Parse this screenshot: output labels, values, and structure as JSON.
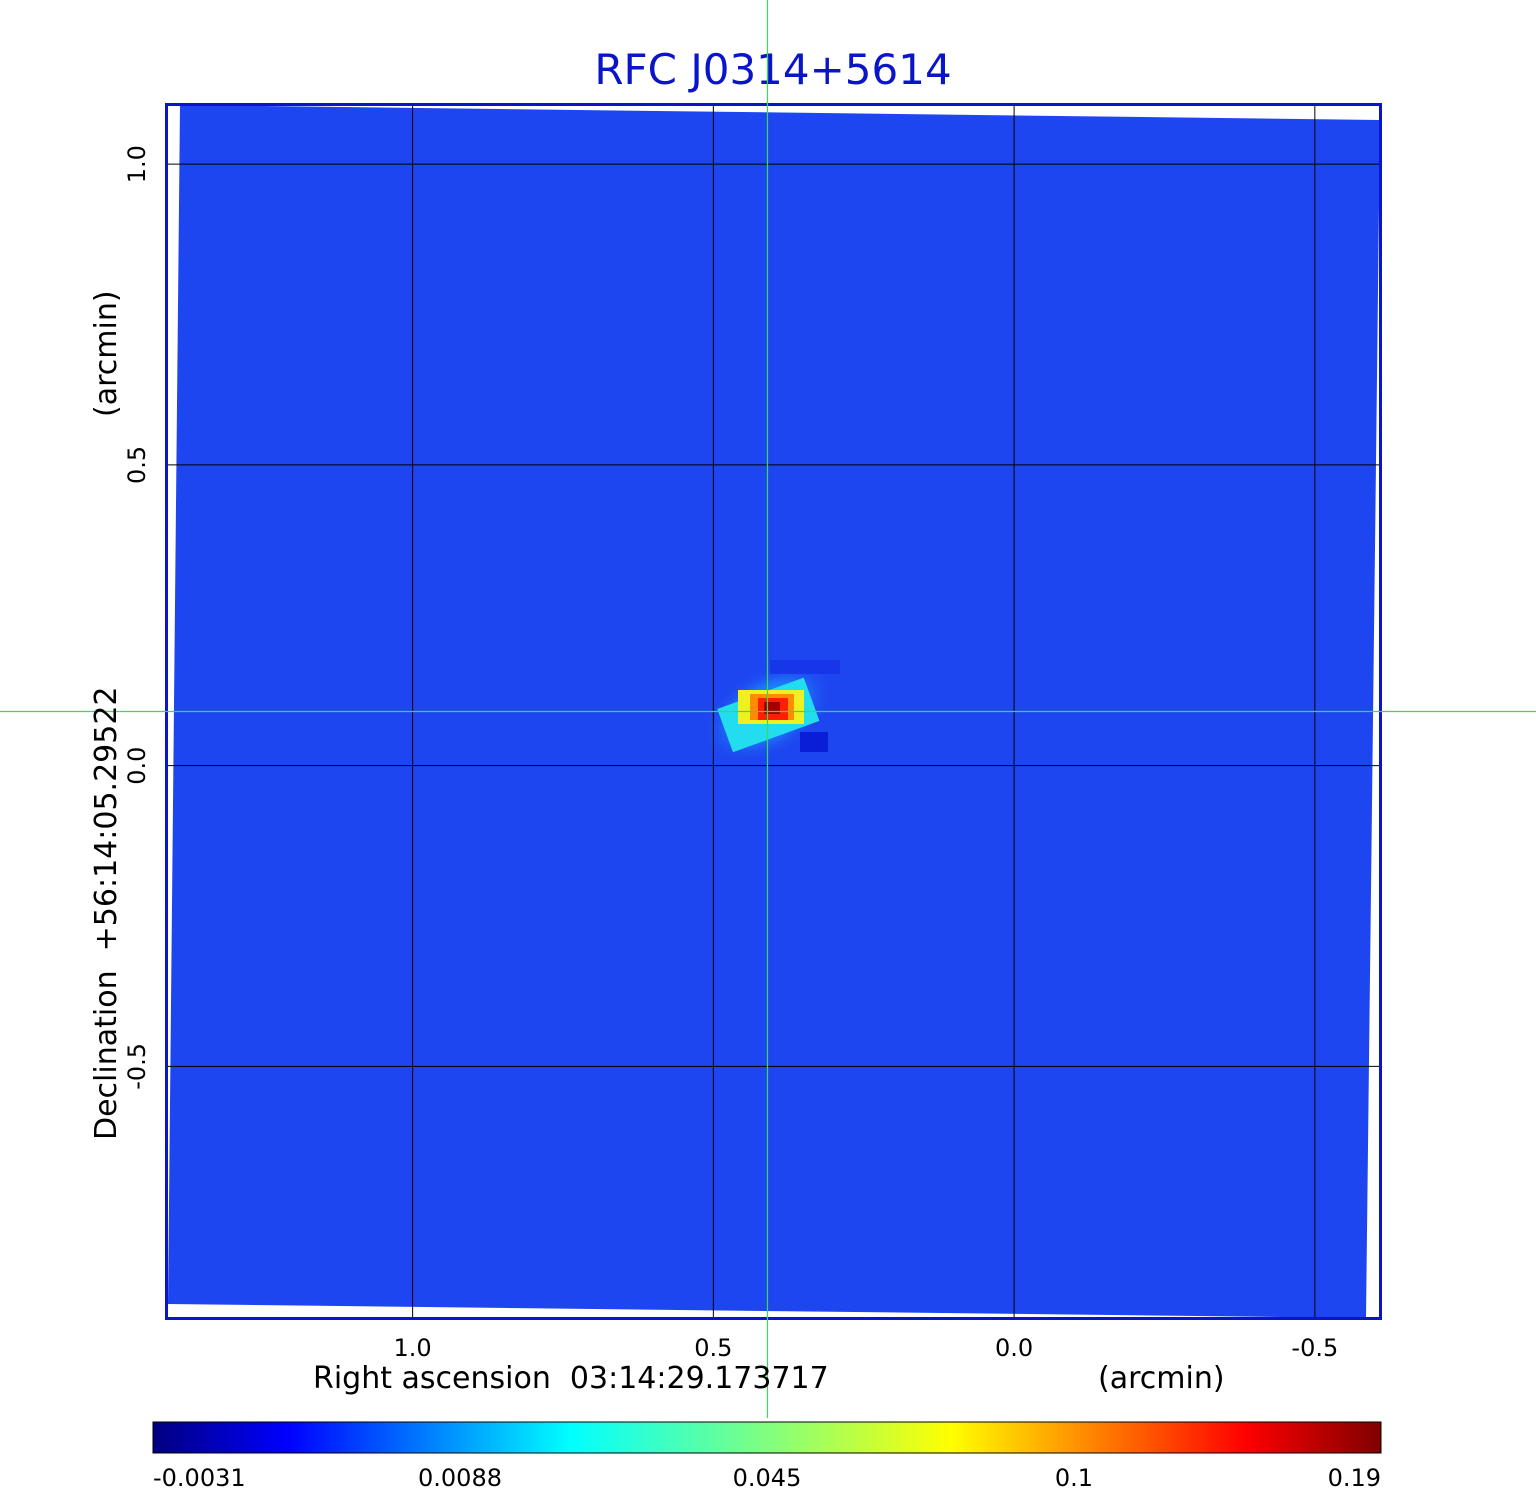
{
  "chart_data": {
    "type": "heatmap",
    "title": "RFC J0314+5614",
    "xlabel": "Right ascension  03:14:29.173717",
    "xunit": "(arcmin)",
    "ylabel": "Declination  +56:14:05.29522",
    "yunit": "(arcmin)",
    "x_axis_reversed": true,
    "xlim": [
      1.41,
      -0.61
    ],
    "ylim": [
      -0.92,
      1.1
    ],
    "xticks": [
      {
        "value": 1.0,
        "label": "1.0"
      },
      {
        "value": 0.5,
        "label": "0.5"
      },
      {
        "value": 0.0,
        "label": "0.0"
      },
      {
        "value": -0.5,
        "label": "-0.5"
      }
    ],
    "yticks": [
      {
        "value": 1.0,
        "label": "1.0"
      },
      {
        "value": 0.5,
        "label": "0.5"
      },
      {
        "value": 0.0,
        "label": "0.0"
      },
      {
        "value": -0.5,
        "label": "-0.5"
      }
    ],
    "grid": true,
    "crosshair": {
      "x": 0.41,
      "y": 0.09,
      "color": "#33dd55"
    },
    "peak": {
      "x": 0.41,
      "y": 0.09,
      "value": 0.19
    },
    "background_value": 0.004,
    "colorbar": {
      "position": "bottom",
      "colormap": "jet",
      "tick_labels": [
        "-0.0031",
        "0.0088",
        "0.045",
        "0.1",
        "0.19"
      ]
    },
    "colors": {
      "background": "#1e46f0",
      "frame": "#0a14c8",
      "grid": "#000000"
    }
  }
}
